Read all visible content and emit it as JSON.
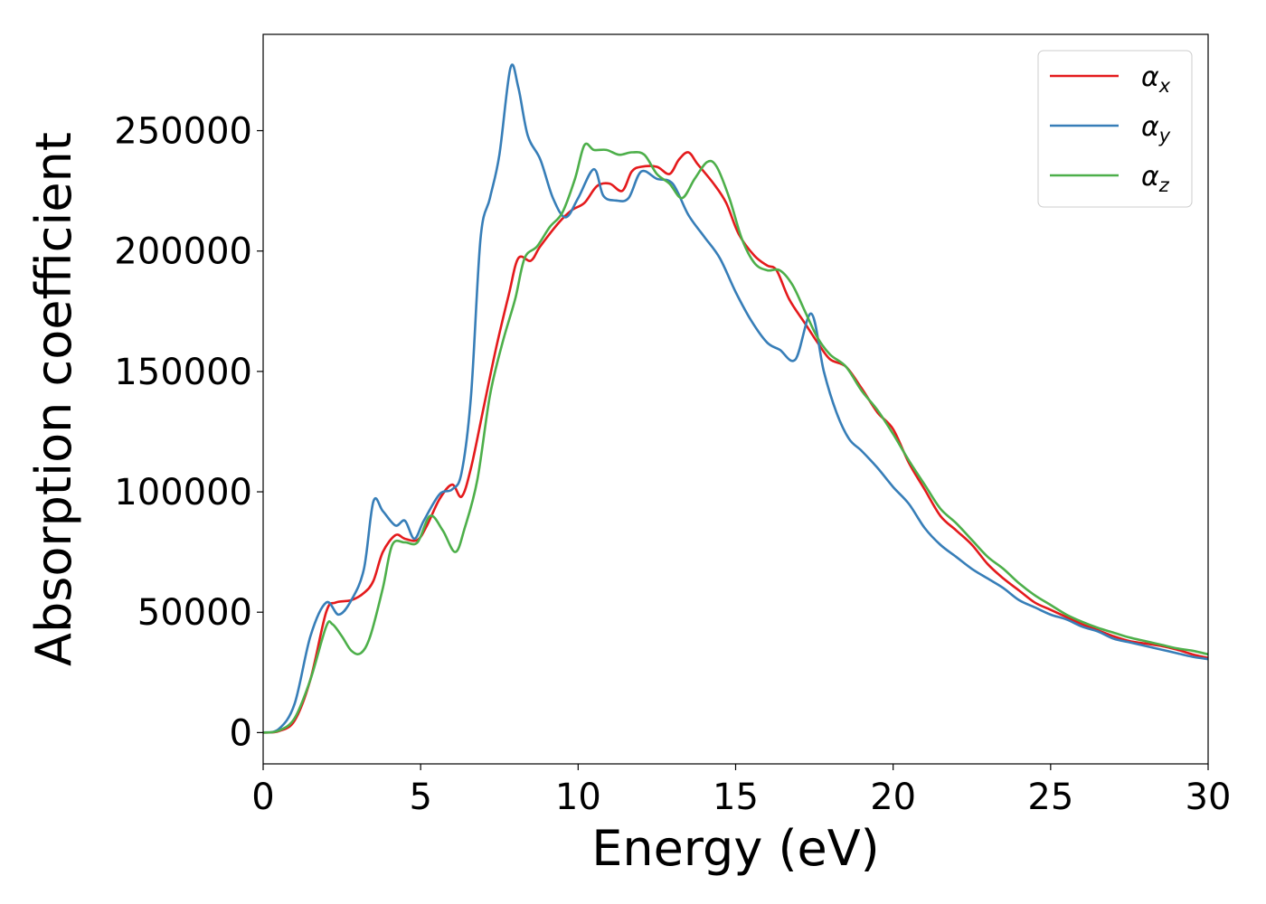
{
  "chart_data": {
    "type": "line",
    "title": "",
    "xlabel": "Energy (eV)",
    "ylabel": "Absorption coefficient",
    "xlim": [
      0,
      30
    ],
    "ylim": [
      -13000,
      290000
    ],
    "xticks": [
      0,
      5,
      10,
      15,
      20,
      25,
      30
    ],
    "yticks": [
      0,
      50000,
      100000,
      150000,
      200000,
      250000
    ],
    "grid": false,
    "legend_position": "top-right",
    "series": [
      {
        "name": "αx",
        "symbol": "α",
        "subscript": "x",
        "color": "#e41a1c",
        "points": [
          [
            0,
            0
          ],
          [
            0.5,
            600
          ],
          [
            1.0,
            5000
          ],
          [
            1.5,
            22000
          ],
          [
            2.0,
            50000
          ],
          [
            2.3,
            54000
          ],
          [
            2.8,
            55000
          ],
          [
            3.2,
            58000
          ],
          [
            3.5,
            63000
          ],
          [
            3.8,
            75000
          ],
          [
            4.2,
            82000
          ],
          [
            4.5,
            80500
          ],
          [
            4.9,
            80000
          ],
          [
            5.2,
            86000
          ],
          [
            5.6,
            97000
          ],
          [
            6.0,
            103000
          ],
          [
            6.3,
            98000
          ],
          [
            6.6,
            110000
          ],
          [
            7.0,
            135000
          ],
          [
            7.4,
            160000
          ],
          [
            7.8,
            182000
          ],
          [
            8.1,
            197000
          ],
          [
            8.5,
            196000
          ],
          [
            8.8,
            202000
          ],
          [
            9.4,
            212000
          ],
          [
            9.8,
            217000
          ],
          [
            10.2,
            220000
          ],
          [
            10.6,
            227000
          ],
          [
            11.0,
            228000
          ],
          [
            11.4,
            225000
          ],
          [
            11.7,
            233000
          ],
          [
            12.0,
            235000
          ],
          [
            12.5,
            235000
          ],
          [
            12.9,
            232000
          ],
          [
            13.2,
            238000
          ],
          [
            13.5,
            241000
          ],
          [
            13.8,
            236000
          ],
          [
            14.3,
            228000
          ],
          [
            14.7,
            220000
          ],
          [
            15.1,
            207000
          ],
          [
            15.6,
            198000
          ],
          [
            16.0,
            194000
          ],
          [
            16.3,
            192000
          ],
          [
            16.7,
            180000
          ],
          [
            17.2,
            170000
          ],
          [
            17.6,
            162000
          ],
          [
            18.0,
            155000
          ],
          [
            18.5,
            152000
          ],
          [
            19.0,
            143000
          ],
          [
            19.5,
            133000
          ],
          [
            20.0,
            126000
          ],
          [
            20.5,
            112000
          ],
          [
            21.0,
            101000
          ],
          [
            21.5,
            90000
          ],
          [
            22.0,
            84000
          ],
          [
            22.5,
            78000
          ],
          [
            23.0,
            70000
          ],
          [
            23.5,
            64000
          ],
          [
            24.0,
            59000
          ],
          [
            24.5,
            54000
          ],
          [
            25.0,
            51000
          ],
          [
            25.5,
            48000
          ],
          [
            26.0,
            45000
          ],
          [
            26.5,
            42500
          ],
          [
            27.0,
            40000
          ],
          [
            27.5,
            38000
          ],
          [
            28.0,
            37000
          ],
          [
            28.5,
            36000
          ],
          [
            29.0,
            34500
          ],
          [
            29.5,
            32500
          ],
          [
            30.0,
            31000
          ]
        ]
      },
      {
        "name": "αy",
        "symbol": "α",
        "subscript": "y",
        "color": "#377eb8",
        "points": [
          [
            0,
            0
          ],
          [
            0.5,
            1500
          ],
          [
            1.0,
            12000
          ],
          [
            1.5,
            40000
          ],
          [
            2.0,
            54000
          ],
          [
            2.4,
            49000
          ],
          [
            2.8,
            55000
          ],
          [
            3.2,
            68000
          ],
          [
            3.5,
            96000
          ],
          [
            3.8,
            92000
          ],
          [
            4.2,
            86000
          ],
          [
            4.5,
            88000
          ],
          [
            4.8,
            80500
          ],
          [
            5.1,
            88000
          ],
          [
            5.6,
            99000
          ],
          [
            6.0,
            101000
          ],
          [
            6.3,
            108000
          ],
          [
            6.6,
            140000
          ],
          [
            6.9,
            205000
          ],
          [
            7.2,
            222000
          ],
          [
            7.5,
            240000
          ],
          [
            7.85,
            276000
          ],
          [
            8.1,
            268000
          ],
          [
            8.4,
            248000
          ],
          [
            8.8,
            238000
          ],
          [
            9.2,
            222000
          ],
          [
            9.6,
            214000
          ],
          [
            10.0,
            222000
          ],
          [
            10.5,
            234000
          ],
          [
            10.8,
            223000
          ],
          [
            11.2,
            221000
          ],
          [
            11.6,
            222000
          ],
          [
            12.0,
            233000
          ],
          [
            12.5,
            230000
          ],
          [
            13.0,
            228000
          ],
          [
            13.5,
            215000
          ],
          [
            14.0,
            206000
          ],
          [
            14.5,
            197000
          ],
          [
            15.0,
            183000
          ],
          [
            15.5,
            171000
          ],
          [
            16.0,
            162000
          ],
          [
            16.4,
            159000
          ],
          [
            16.9,
            155000
          ],
          [
            17.4,
            174000
          ],
          [
            17.8,
            150000
          ],
          [
            18.2,
            133000
          ],
          [
            18.6,
            122000
          ],
          [
            19.0,
            117000
          ],
          [
            19.5,
            110000
          ],
          [
            20.0,
            102000
          ],
          [
            20.5,
            95000
          ],
          [
            21.0,
            85000
          ],
          [
            21.5,
            78000
          ],
          [
            22.0,
            73000
          ],
          [
            22.5,
            68000
          ],
          [
            23.0,
            64000
          ],
          [
            23.5,
            60000
          ],
          [
            24.0,
            55000
          ],
          [
            24.5,
            52000
          ],
          [
            25.0,
            49000
          ],
          [
            25.5,
            47000
          ],
          [
            26.0,
            44000
          ],
          [
            26.5,
            42000
          ],
          [
            27.0,
            39000
          ],
          [
            27.5,
            37500
          ],
          [
            28.0,
            36000
          ],
          [
            28.5,
            34500
          ],
          [
            29.0,
            33000
          ],
          [
            29.5,
            31500
          ],
          [
            30.0,
            30500
          ]
        ]
      },
      {
        "name": "αz",
        "symbol": "α",
        "subscript": "z",
        "color": "#4daf4a",
        "points": [
          [
            0,
            0
          ],
          [
            0.5,
            800
          ],
          [
            1.0,
            6000
          ],
          [
            1.5,
            22000
          ],
          [
            2.0,
            44000
          ],
          [
            2.2,
            45000
          ],
          [
            2.5,
            40000
          ],
          [
            2.8,
            34000
          ],
          [
            3.1,
            33000
          ],
          [
            3.4,
            40000
          ],
          [
            3.8,
            60000
          ],
          [
            4.1,
            78000
          ],
          [
            4.5,
            79000
          ],
          [
            4.9,
            79000
          ],
          [
            5.3,
            90000
          ],
          [
            5.7,
            84000
          ],
          [
            6.1,
            75000
          ],
          [
            6.4,
            85000
          ],
          [
            6.8,
            105000
          ],
          [
            7.2,
            140000
          ],
          [
            7.6,
            162000
          ],
          [
            8.0,
            180000
          ],
          [
            8.3,
            197000
          ],
          [
            8.7,
            202000
          ],
          [
            9.1,
            210000
          ],
          [
            9.5,
            216000
          ],
          [
            9.9,
            230000
          ],
          [
            10.2,
            244000
          ],
          [
            10.5,
            242000
          ],
          [
            10.9,
            242000
          ],
          [
            11.3,
            240000
          ],
          [
            11.7,
            241000
          ],
          [
            12.1,
            240000
          ],
          [
            12.5,
            232000
          ],
          [
            12.9,
            228000
          ],
          [
            13.3,
            222000
          ],
          [
            13.7,
            230000
          ],
          [
            14.1,
            237000
          ],
          [
            14.4,
            235000
          ],
          [
            14.8,
            222000
          ],
          [
            15.2,
            205000
          ],
          [
            15.6,
            195000
          ],
          [
            16.0,
            192000
          ],
          [
            16.4,
            192000
          ],
          [
            16.8,
            186000
          ],
          [
            17.2,
            175000
          ],
          [
            17.6,
            164000
          ],
          [
            18.0,
            157000
          ],
          [
            18.5,
            152000
          ],
          [
            19.0,
            142000
          ],
          [
            19.5,
            134000
          ],
          [
            20.0,
            124000
          ],
          [
            20.5,
            113000
          ],
          [
            21.0,
            103000
          ],
          [
            21.5,
            93000
          ],
          [
            22.0,
            87000
          ],
          [
            22.5,
            80000
          ],
          [
            23.0,
            73000
          ],
          [
            23.5,
            68000
          ],
          [
            24.0,
            62000
          ],
          [
            24.5,
            57000
          ],
          [
            25.0,
            53000
          ],
          [
            25.5,
            49000
          ],
          [
            26.0,
            46000
          ],
          [
            26.5,
            43500
          ],
          [
            27.0,
            41500
          ],
          [
            27.5,
            39500
          ],
          [
            28.0,
            38000
          ],
          [
            28.5,
            36500
          ],
          [
            29.0,
            35000
          ],
          [
            29.5,
            34000
          ],
          [
            30.0,
            32500
          ]
        ]
      }
    ]
  }
}
